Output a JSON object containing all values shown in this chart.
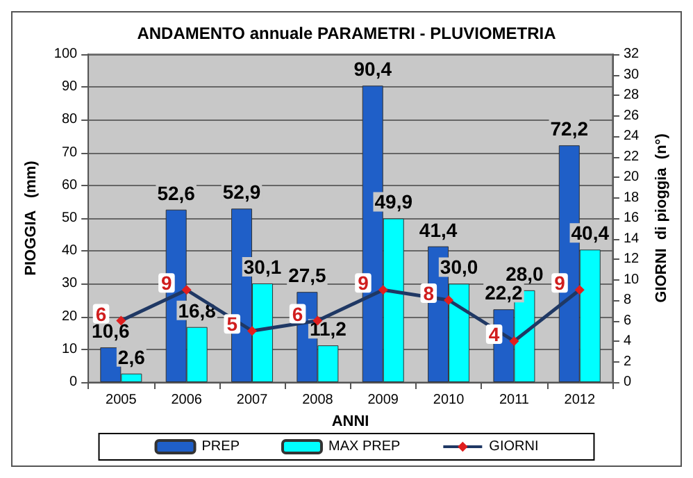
{
  "chart_data": {
    "type": "bar",
    "title": "ANDAMENTO annuale PARAMETRI - PLUVIOMETRIA",
    "xlabel": "ANNI",
    "ylabel": "PIOGGIA   (mm)",
    "y2label": "GIORNI  di pioggia  (n°)",
    "categories": [
      "2005",
      "2006",
      "2007",
      "2008",
      "2009",
      "2010",
      "2011",
      "2012"
    ],
    "series": [
      {
        "name": "PREP",
        "color": "#1f5fc8",
        "values": [
          10.6,
          52.6,
          52.9,
          27.5,
          90.4,
          41.4,
          22.2,
          72.2
        ],
        "value_labels": [
          "10,6",
          "52,6",
          "52,9",
          "27,5",
          "90,4",
          "41,4",
          "22,2",
          "72,2"
        ]
      },
      {
        "name": "MAX PREP",
        "color": "#00ffff",
        "values": [
          2.6,
          16.8,
          30.1,
          11.2,
          49.9,
          30.0,
          28.0,
          40.4
        ],
        "value_labels": [
          "2,6",
          "16,8",
          "30,1",
          "11,2",
          "49,9",
          "30,0",
          "28,0",
          "40,4"
        ]
      },
      {
        "name": "GIORNI",
        "type": "line",
        "axis": "y2",
        "color": "#1f3864",
        "marker": "diamond",
        "values": [
          6,
          9,
          5,
          6,
          9,
          8,
          4,
          9
        ],
        "value_labels": [
          "6",
          "9",
          "5",
          "6",
          "9",
          "8",
          "4",
          "9"
        ]
      }
    ],
    "ylim": [
      0,
      100
    ],
    "yticks": [
      0,
      10,
      20,
      30,
      40,
      50,
      60,
      70,
      80,
      90,
      100
    ],
    "y2lim": [
      0,
      32
    ],
    "y2ticks": [
      0,
      2,
      4,
      6,
      8,
      10,
      12,
      14,
      16,
      18,
      20,
      22,
      24,
      26,
      28,
      30,
      32
    ],
    "grid": "y",
    "legend": "bottom"
  }
}
